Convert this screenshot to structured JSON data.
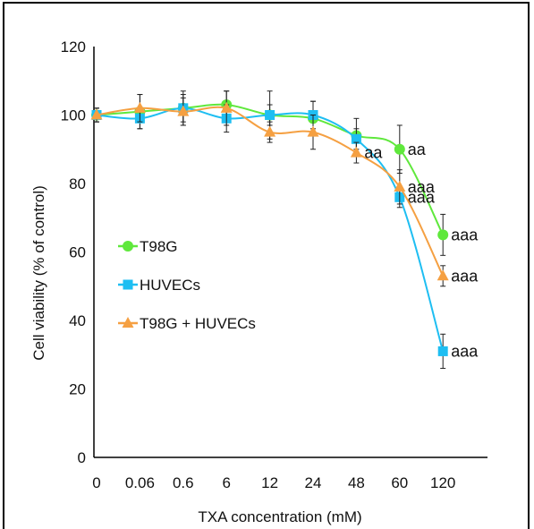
{
  "chart_data": {
    "type": "line",
    "title": "",
    "xlabel": "TXA concentration (mM)",
    "ylabel": "Cell viability (% of control)",
    "categories": [
      "0",
      "0.06",
      "0.6",
      "6",
      "12",
      "24",
      "48",
      "60",
      "120"
    ],
    "ylim": [
      0,
      120
    ],
    "yticks": [
      "0",
      "20",
      "40",
      "60",
      "80",
      "100",
      "120"
    ],
    "grid": false,
    "legend_position": "center-left",
    "series": [
      {
        "name": "T98G",
        "color": "#5fe83c",
        "marker": "circle",
        "values": [
          100,
          101,
          102,
          103,
          100,
          99,
          94,
          90,
          65
        ],
        "errors": [
          2,
          5,
          5,
          4,
          7,
          5,
          5,
          7,
          6
        ],
        "annotations": [
          "",
          "",
          "",
          "",
          "",
          "",
          "",
          "aa",
          "aaa"
        ]
      },
      {
        "name": "HUVECs",
        "color": "#1ebef2",
        "marker": "square",
        "values": [
          100,
          99,
          102,
          99,
          100,
          100,
          93,
          76,
          31
        ],
        "errors": [
          2,
          3,
          4,
          4,
          3,
          4,
          3,
          3,
          5
        ],
        "annotations": [
          "",
          "",
          "",
          "",
          "",
          "",
          "",
          "aaa",
          "aaa"
        ]
      },
      {
        "name": "T98G + HUVECs",
        "color": "#f5a042",
        "marker": "triangle",
        "values": [
          100,
          102,
          101,
          102,
          95,
          95,
          89,
          79,
          53
        ],
        "errors": [
          2,
          4,
          4,
          5,
          3,
          5,
          3,
          5,
          3
        ],
        "annotations": [
          "",
          "",
          "",
          "",
          "",
          "",
          "aa",
          "aaa",
          "aaa"
        ]
      }
    ]
  }
}
